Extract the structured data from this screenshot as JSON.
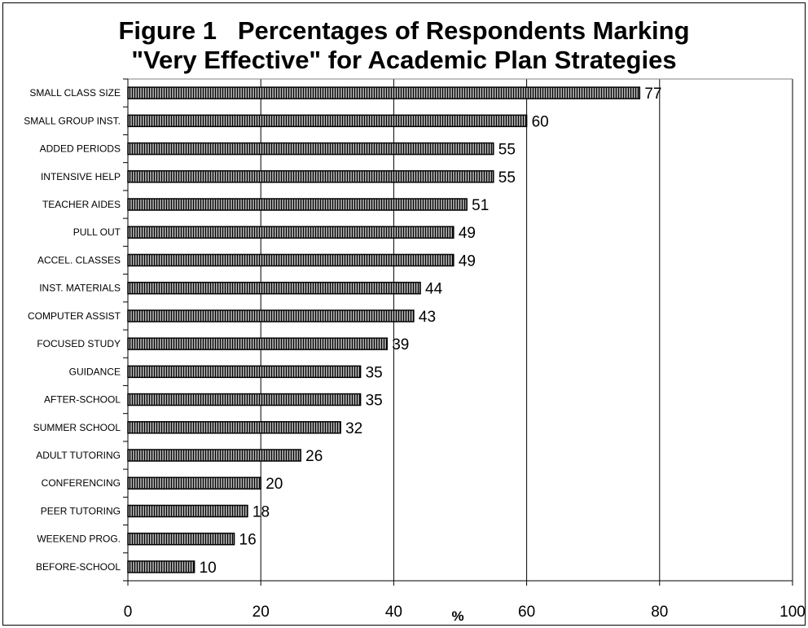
{
  "chart_data": {
    "type": "bar",
    "orientation": "horizontal",
    "title_lines": [
      "Figure 1   Percentages of Respondents Marking",
      "\"Very Effective\" for Academic Plan Strategies"
    ],
    "xlabel": "%",
    "ylabel": "",
    "xlim": [
      0,
      100
    ],
    "x_ticks": [
      0,
      20,
      40,
      60,
      80,
      100
    ],
    "grid": "vertical gridlines",
    "legend": "none",
    "categories": [
      "SMALL CLASS SIZE",
      "SMALL GROUP INST.",
      "ADDED PERIODS",
      "INTENSIVE HELP",
      "TEACHER AIDES",
      "PULL OUT",
      "ACCEL. CLASSES",
      "INST. MATERIALS",
      "COMPUTER ASSIST",
      "FOCUSED STUDY",
      "GUIDANCE",
      "AFTER-SCHOOL",
      "SUMMER SCHOOL",
      "ADULT TUTORING",
      "CONFERENCING",
      "PEER TUTORING",
      "WEEKEND PROG.",
      "BEFORE-SCHOOL"
    ],
    "values": [
      77,
      60,
      55,
      55,
      51,
      49,
      49,
      44,
      43,
      39,
      35,
      35,
      32,
      26,
      20,
      18,
      16,
      10
    ],
    "bar_fill": "vertical hatch pattern",
    "colors": {
      "bar_fill": "#9a9a9a",
      "bar_stripe": "#000000",
      "grid": "#000000"
    }
  }
}
